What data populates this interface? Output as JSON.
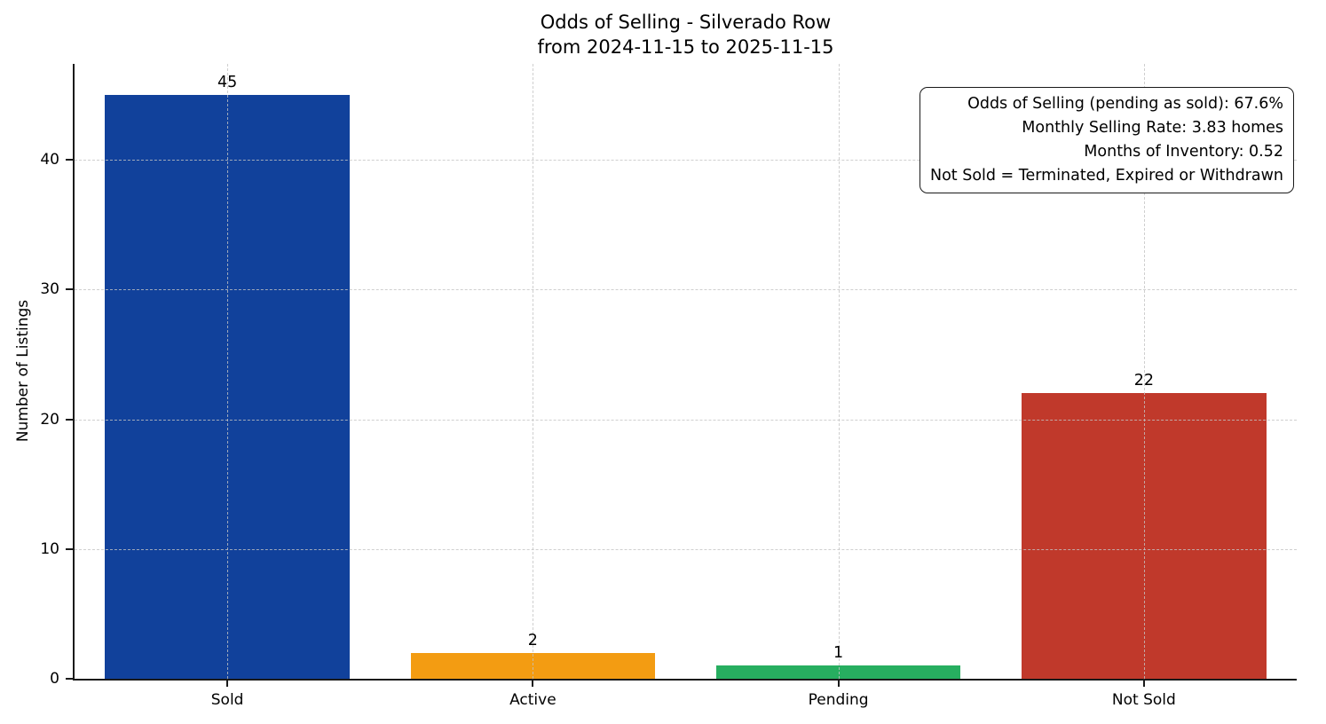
{
  "chart_data": {
    "type": "bar",
    "title": "Odds of Selling - Silverado Row",
    "subtitle": "from 2024-11-15 to 2025-11-15",
    "categories": [
      "Sold",
      "Active",
      "Pending",
      "Not Sold"
    ],
    "values": [
      45,
      2,
      1,
      22
    ],
    "bar_colors": [
      "#11419b",
      "#f39c12",
      "#27ae60",
      "#c0392b"
    ],
    "xlabel": "",
    "ylabel": "Number of Listings",
    "ylim": [
      0,
      47.4
    ],
    "yticks": [
      0,
      10,
      20,
      30,
      40
    ],
    "grid": {
      "style": "dashed",
      "axes": "both",
      "color": "#c3c3c3"
    },
    "axis_color": "#1a1a1a",
    "legend": "none",
    "annotation_lines": [
      "Odds of Selling (pending as sold): 67.6%",
      "Monthly Selling Rate: 3.83 homes",
      "Months of Inventory: 0.52",
      "Not Sold = Terminated, Expired or Withdrawn"
    ]
  }
}
